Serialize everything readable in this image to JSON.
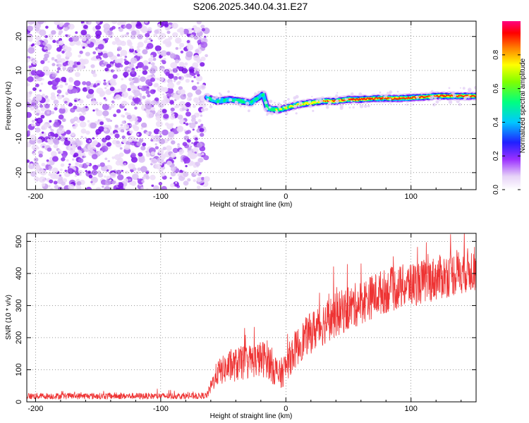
{
  "title": "S206.2025.340.04.31.E27",
  "chart_data": [
    {
      "type": "heatmap",
      "xlabel": "Height of straight line (km)",
      "ylabel": "Frequency (Hz)",
      "xlim": [
        -207,
        152
      ],
      "ylim": [
        -25,
        24.5
      ],
      "xticks": [
        -200,
        -100,
        0,
        100
      ],
      "yticks": [
        -20,
        -10,
        0,
        10,
        20
      ],
      "colorbar": {
        "label": "Normalized spectral amplitude",
        "range": [
          0,
          1
        ],
        "ticks": [
          "0.0",
          "0.2",
          "0.4",
          "0.6",
          "0.8"
        ]
      },
      "noise_region_x": [
        -207,
        -63
      ],
      "signal_trace": {
        "x": [
          -63,
          -55,
          -45,
          -35,
          -28,
          -22,
          -18,
          -15,
          -10,
          -5,
          0,
          10,
          20,
          30,
          40,
          50,
          60,
          70,
          80,
          90,
          100,
          110,
          120,
          130,
          140,
          152
        ],
        "freq": [
          2.0,
          1.0,
          1.5,
          1.0,
          0.5,
          2.0,
          3.0,
          -1.0,
          -1.5,
          -1.5,
          -1.0,
          0.0,
          0.5,
          1.0,
          1.0,
          1.5,
          1.5,
          1.8,
          1.8,
          1.8,
          2.0,
          2.2,
          2.5,
          2.5,
          2.5,
          2.5
        ],
        "amplitude": [
          0.55,
          0.6,
          0.55,
          0.6,
          0.55,
          0.5,
          0.6,
          0.6,
          0.65,
          0.7,
          0.75,
          0.8,
          0.85,
          0.9,
          0.9,
          0.92,
          0.95,
          0.95,
          0.95,
          0.95,
          0.97,
          0.97,
          0.98,
          0.98,
          0.98,
          0.98
        ]
      }
    },
    {
      "type": "line",
      "xlabel": "Height of straight line (km)",
      "ylabel": "SNR (10 * v/v)",
      "xlim": [
        -207,
        152
      ],
      "ylim": [
        0,
        525
      ],
      "xticks": [
        -200,
        -100,
        0,
        100
      ],
      "yticks": [
        0,
        100,
        200,
        300,
        400,
        500
      ],
      "color": "#ee3333",
      "series": [
        {
          "name": "SNR",
          "x": [
            -207,
            -180,
            -150,
            -120,
            -90,
            -70,
            -63,
            -55,
            -45,
            -35,
            -25,
            -15,
            -5,
            0,
            5,
            15,
            25,
            35,
            45,
            55,
            65,
            75,
            85,
            95,
            105,
            115,
            125,
            135,
            145,
            152
          ],
          "mean": [
            18,
            18,
            18,
            18,
            18,
            18,
            20,
            90,
            110,
            120,
            130,
            135,
            80,
            110,
            150,
            200,
            230,
            260,
            280,
            300,
            320,
            340,
            350,
            360,
            370,
            380,
            390,
            400,
            410,
            415
          ],
          "spread": [
            10,
            10,
            10,
            10,
            10,
            10,
            10,
            40,
            50,
            55,
            55,
            60,
            50,
            50,
            60,
            60,
            70,
            70,
            70,
            70,
            70,
            70,
            70,
            70,
            70,
            70,
            70,
            70,
            70,
            70
          ]
        }
      ]
    }
  ]
}
